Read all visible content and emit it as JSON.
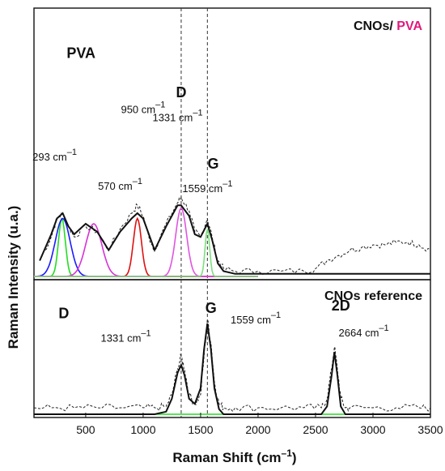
{
  "chart_data": [
    {
      "type": "line",
      "panel": "top",
      "title_parts": [
        {
          "text": "CNOs/",
          "color": "#111111"
        },
        {
          "text": "PVA",
          "color": "#e0197d"
        }
      ],
      "ylabel": "Raman Intensity (u.a.)",
      "xlim": [
        50,
        3500
      ],
      "ylim": [
        0,
        1.0
      ],
      "x": [
        100,
        200,
        250,
        300,
        350,
        400,
        500,
        600,
        700,
        800,
        900,
        950,
        1000,
        1050,
        1100,
        1200,
        1300,
        1331,
        1400,
        1450,
        1500,
        1559,
        1600,
        1650,
        1700,
        1800,
        2000,
        2200,
        2400,
        2500,
        2600,
        2700,
        2800,
        2900,
        3000,
        3100,
        3200,
        3300,
        3400,
        3500
      ],
      "series": [
        {
          "name": "measured",
          "style": "dashed-noisy",
          "color": "#222222",
          "values": [
            0.06,
            0.15,
            0.22,
            0.24,
            0.19,
            0.15,
            0.19,
            0.17,
            0.1,
            0.18,
            0.24,
            0.27,
            0.23,
            0.15,
            0.1,
            0.2,
            0.28,
            0.3,
            0.25,
            0.17,
            0.15,
            0.22,
            0.15,
            0.06,
            0.03,
            0.02,
            0.02,
            0.02,
            0.02,
            0.03,
            0.06,
            0.08,
            0.1,
            0.11,
            0.12,
            0.12,
            0.13,
            0.13,
            0.12,
            0.1
          ]
        },
        {
          "name": "fit",
          "style": "solid",
          "color": "#111111",
          "values": [
            0.06,
            0.16,
            0.22,
            0.24,
            0.19,
            0.16,
            0.2,
            0.17,
            0.1,
            0.17,
            0.22,
            0.24,
            0.22,
            0.16,
            0.1,
            0.19,
            0.27,
            0.27,
            0.23,
            0.16,
            0.15,
            0.2,
            0.14,
            0.05,
            0.02,
            0.01,
            0.01,
            0.01,
            0.01,
            0.01,
            0.01,
            0.01,
            0.01,
            0.01,
            0.01,
            0.01,
            0.01,
            0.01,
            0.01,
            0.01
          ]
        }
      ],
      "peaks": [
        {
          "center": 293,
          "height": 0.22,
          "width": 60,
          "color": "#22dd22"
        },
        {
          "center": 300,
          "height": 0.22,
          "width": 130,
          "color": "#1a1aff"
        },
        {
          "center": 570,
          "height": 0.2,
          "width": 140,
          "color": "#d633d6"
        },
        {
          "center": 950,
          "height": 0.22,
          "width": 70,
          "color": "#dd1111"
        },
        {
          "center": 1331,
          "height": 0.26,
          "width": 95,
          "color": "#e055e0"
        },
        {
          "center": 1559,
          "height": 0.18,
          "width": 40,
          "color": "#7ee07e"
        }
      ],
      "annotations": [
        {
          "label": "PVA",
          "color": "#e0197d",
          "bold": true,
          "x": 460,
          "y": 0.83
        },
        {
          "label": "950 cm",
          "sup": "–1",
          "x": 1000,
          "y": 0.62
        },
        {
          "label": "D",
          "bold": true,
          "x": 1331,
          "y": 0.68
        },
        {
          "label": "1331 cm",
          "sup": "–1",
          "x": 1300,
          "y": 0.59
        },
        {
          "label": "293 cm",
          "sup": "–1",
          "x": 230,
          "y": 0.44
        },
        {
          "label": "570 cm",
          "sup": "–1",
          "x": 800,
          "y": 0.33
        },
        {
          "label": "G",
          "bold": true,
          "x": 1610,
          "y": 0.41
        },
        {
          "label": "1559 cm",
          "sup": "–1",
          "x": 1560,
          "y": 0.32
        }
      ],
      "vlines": [
        1331,
        1559
      ]
    },
    {
      "type": "line",
      "panel": "bottom",
      "title": "CNOs reference",
      "xlabel": "Raman Shift (cm–1)",
      "xlim": [
        50,
        3500
      ],
      "ylim": [
        0,
        1.0
      ],
      "xticks": [
        500,
        1000,
        1500,
        2000,
        2500,
        3000,
        3500
      ],
      "x": [
        50,
        200,
        400,
        600,
        800,
        1000,
        1100,
        1200,
        1250,
        1300,
        1331,
        1360,
        1400,
        1450,
        1500,
        1530,
        1559,
        1590,
        1620,
        1660,
        1700,
        1800,
        2000,
        2200,
        2400,
        2550,
        2600,
        2640,
        2664,
        2690,
        2720,
        2760,
        2800,
        3000,
        3200,
        3400,
        3500
      ],
      "series": [
        {
          "name": "measured",
          "style": "dashed-noisy",
          "color": "#222222",
          "values": [
            0.05,
            0.05,
            0.05,
            0.05,
            0.05,
            0.05,
            0.05,
            0.06,
            0.15,
            0.35,
            0.45,
            0.35,
            0.15,
            0.08,
            0.15,
            0.45,
            0.73,
            0.55,
            0.25,
            0.08,
            0.05,
            0.05,
            0.05,
            0.05,
            0.05,
            0.05,
            0.12,
            0.35,
            0.52,
            0.35,
            0.12,
            0.05,
            0.05,
            0.05,
            0.05,
            0.05,
            0.05
          ]
        },
        {
          "name": "fit",
          "style": "solid",
          "color": "#111111",
          "values": [
            0.0,
            0.0,
            0.0,
            0.0,
            0.0,
            0.0,
            0.0,
            0.02,
            0.12,
            0.32,
            0.38,
            0.3,
            0.12,
            0.08,
            0.2,
            0.5,
            0.7,
            0.5,
            0.2,
            0.04,
            0.0,
            0.0,
            0.0,
            0.0,
            0.0,
            0.0,
            0.06,
            0.3,
            0.48,
            0.3,
            0.06,
            0.0,
            0.0,
            0.0,
            0.0,
            0.0,
            0.0
          ]
        }
      ],
      "annotations": [
        {
          "label": "D",
          "bold": true,
          "x": 310,
          "y": 0.74
        },
        {
          "label": "1331 cm",
          "sup": "–1",
          "x": 850,
          "y": 0.56
        },
        {
          "label": "G",
          "bold": true,
          "x": 1590,
          "y": 0.78
        },
        {
          "label": "1559 cm",
          "sup": "–1",
          "x": 1980,
          "y": 0.7
        },
        {
          "label": "2D",
          "bold": true,
          "x": 2720,
          "y": 0.8
        },
        {
          "label": "2664 cm",
          "sup": "–1",
          "x": 2920,
          "y": 0.6
        }
      ],
      "vlines": [
        1331,
        1559
      ]
    }
  ],
  "axis": {
    "ylabel": "Raman Intensity (u.a.)",
    "xlabel_main": "Raman Shift (cm",
    "xlabel_sup": "–1",
    "xlabel_end": ")"
  }
}
